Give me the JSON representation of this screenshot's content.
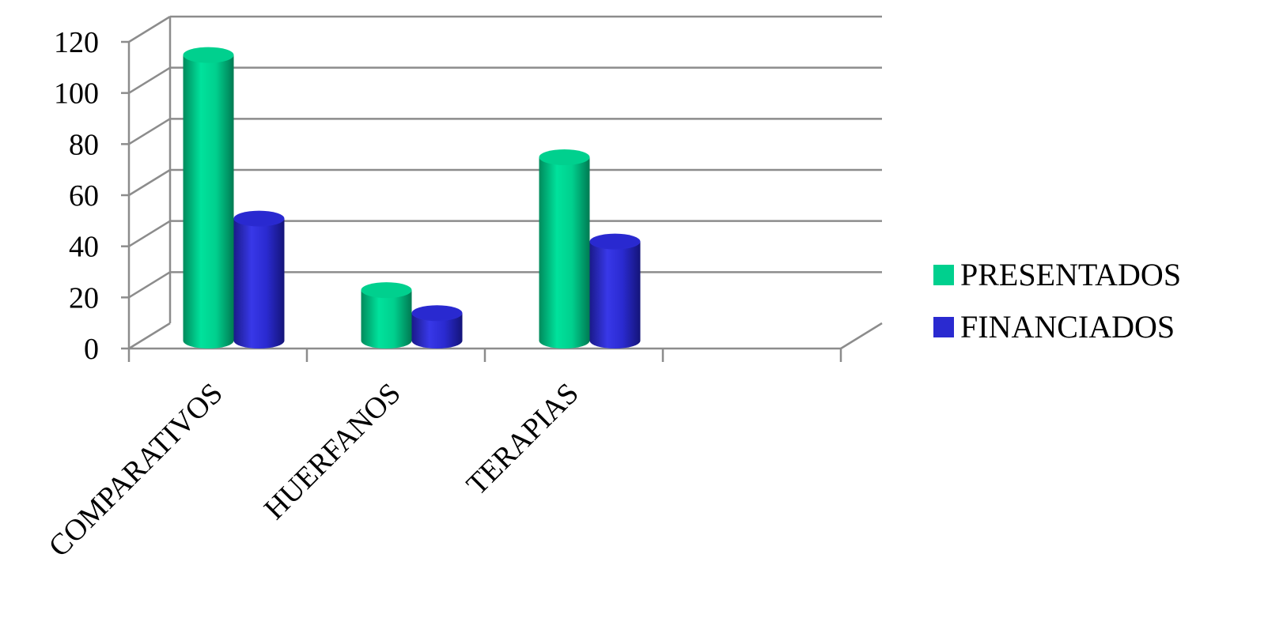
{
  "chart_data": {
    "type": "bar",
    "categories": [
      "COMPARATIVOS",
      "HUERFANOS",
      "TERAPIAS",
      ""
    ],
    "series": [
      {
        "name": "PRESENTADOS",
        "values": [
          113,
          21,
          73,
          null
        ],
        "color": "#00d08e"
      },
      {
        "name": "FINANCIADOS",
        "values": [
          49,
          12,
          40,
          null
        ],
        "color": "#2a2ad0"
      }
    ],
    "yticks": [
      0,
      20,
      40,
      60,
      80,
      100,
      120
    ],
    "ylim": [
      0,
      120
    ],
    "grid": true,
    "legend_position": "right",
    "bar_shape": "cylinder"
  }
}
